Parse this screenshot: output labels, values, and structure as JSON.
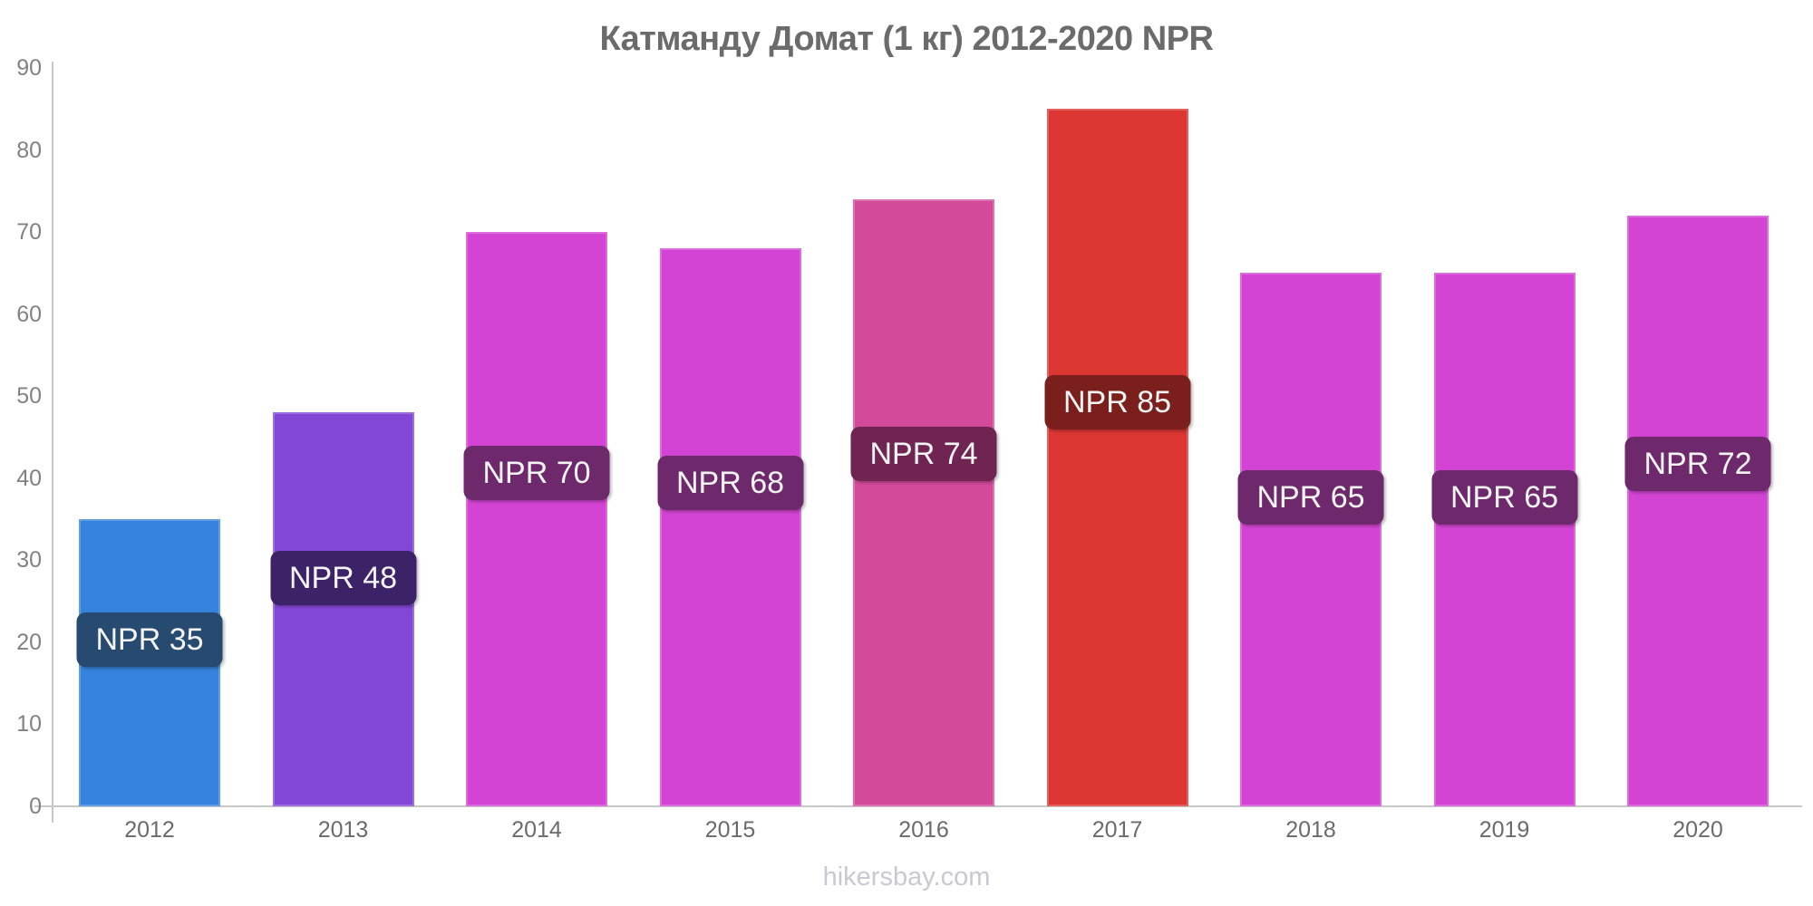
{
  "title": "Катманду Домат (1 кг) 2012-2020 NPR",
  "watermark": "hikersbay.com",
  "chart_data": {
    "type": "bar",
    "title": "Катманду Домат (1 кг) 2012-2020 NPR",
    "categories": [
      "2012",
      "2013",
      "2014",
      "2015",
      "2016",
      "2017",
      "2018",
      "2019",
      "2020"
    ],
    "values": [
      35,
      48,
      70,
      68,
      74,
      85,
      65,
      65,
      72
    ],
    "bar_labels": [
      "NPR 35",
      "NPR 48",
      "NPR 70",
      "NPR 68",
      "NPR 74",
      "NPR 85",
      "NPR 65",
      "NPR 65",
      "NPR 72"
    ],
    "currency": "NPR",
    "unit": "1 кг",
    "city": "Катманду",
    "item": "Домат",
    "year_range": "2012-2020",
    "bar_colors": [
      "#3583dc",
      "#8347d8",
      "#d444d4",
      "#d444d4",
      "#d44a9b",
      "#dc3732",
      "#d444d4",
      "#d444d4",
      "#d444d4"
    ],
    "badge_colors": [
      "#264a70",
      "#3c2367",
      "#6d296b",
      "#6d296b",
      "#6f2452",
      "#7b1f1c",
      "#6d296b",
      "#6d296b",
      "#6d296b"
    ],
    "badge_text_color": "#f4f4f4",
    "axis_line_color": "#c8c8c8",
    "ylim": [
      0,
      90
    ],
    "yticks": [
      0,
      10,
      20,
      30,
      40,
      50,
      60,
      70,
      80,
      90
    ],
    "xlabel": "",
    "ylabel": "",
    "grid": false,
    "legend": false
  }
}
